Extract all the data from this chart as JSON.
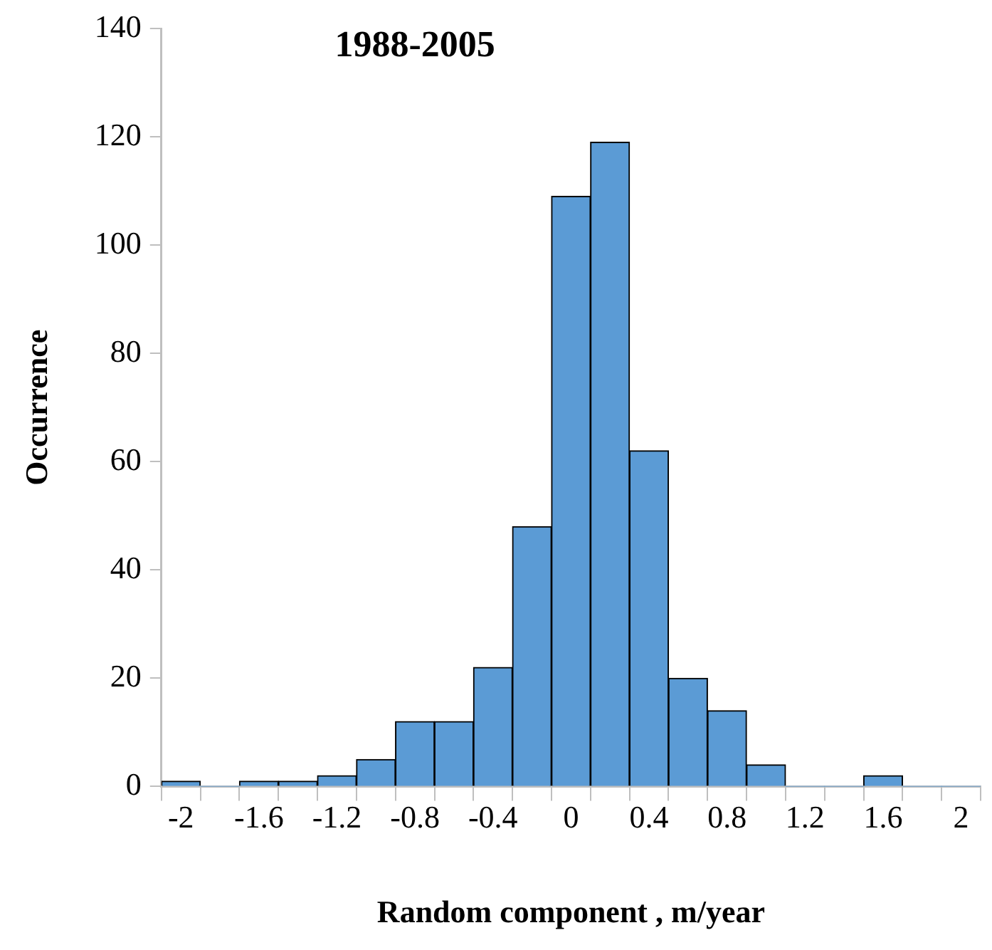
{
  "chart_data": {
    "type": "histogram",
    "title": "1988-2005",
    "xlabel": "Random component , m/year",
    "ylabel": "Occurrence",
    "bins": [
      -2.1,
      -1.9,
      -1.7,
      -1.5,
      -1.3,
      -1.1,
      -0.9,
      -0.7,
      -0.5,
      -0.3,
      -0.1,
      0.1,
      0.3,
      0.5,
      0.7,
      0.9,
      1.1,
      1.3,
      1.5,
      1.7,
      1.9,
      2.1
    ],
    "values": [
      1,
      0,
      1,
      1,
      2,
      5,
      12,
      12,
      22,
      48,
      109,
      119,
      62,
      20,
      14,
      4,
      0,
      0,
      2,
      0,
      0
    ],
    "color": "#5b9bd5",
    "xlim": [
      -2.1,
      2.1
    ],
    "xticks": [
      {
        "value": -2.1,
        "label": null
      },
      -2,
      {
        "value": -1.9,
        "label": null
      },
      {
        "value": -1.7,
        "label": null
      },
      -1.6,
      {
        "value": -1.5,
        "label": null
      },
      {
        "value": -1.3,
        "label": null
      },
      -1.2,
      {
        "value": -1.1,
        "label": null
      },
      {
        "value": -0.9,
        "label": null
      },
      -0.8,
      {
        "value": -0.7,
        "label": null
      },
      {
        "value": -0.5,
        "label": null
      },
      -0.4,
      {
        "value": -0.3,
        "label": null
      },
      {
        "value": -0.1,
        "label": null
      },
      0,
      {
        "value": 0.1,
        "label": null
      },
      {
        "value": 0.3,
        "label": null
      },
      0.4,
      {
        "value": 0.5,
        "label": null
      },
      {
        "value": 0.7,
        "label": null
      },
      0.8,
      {
        "value": 0.9,
        "label": null
      },
      {
        "value": 1.1,
        "label": null
      },
      1.2,
      {
        "value": 1.3,
        "label": null
      },
      {
        "value": 1.5,
        "label": null
      },
      1.6,
      {
        "value": 1.7,
        "label": null
      },
      {
        "value": 1.9,
        "label": null
      },
      2,
      {
        "value": 2.1,
        "label": null
      }
    ],
    "ylim": [
      0,
      140
    ],
    "yticks": [
      0,
      20,
      40,
      60,
      80,
      100,
      120,
      140
    ],
    "grid": false,
    "legend": false
  }
}
